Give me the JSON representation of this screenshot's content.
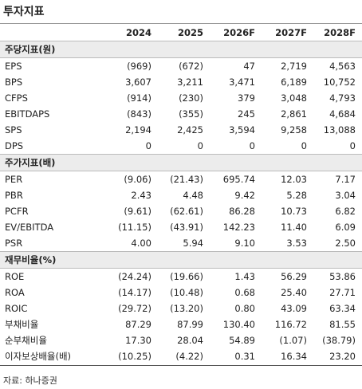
{
  "header": {
    "title": "투자지표"
  },
  "table": {
    "columns": [
      "2024",
      "2025",
      "2026F",
      "2027F",
      "2028F"
    ],
    "sections": [
      {
        "title": "주당지표(원)",
        "rows": [
          {
            "label": "EPS",
            "values": [
              "(969)",
              "(672)",
              "47",
              "2,719",
              "4,563"
            ]
          },
          {
            "label": "BPS",
            "values": [
              "3,607",
              "3,211",
              "3,471",
              "6,189",
              "10,752"
            ]
          },
          {
            "label": "CFPS",
            "values": [
              "(914)",
              "(230)",
              "379",
              "3,048",
              "4,793"
            ]
          },
          {
            "label": "EBITDAPS",
            "values": [
              "(843)",
              "(355)",
              "245",
              "2,861",
              "4,684"
            ]
          },
          {
            "label": "SPS",
            "values": [
              "2,194",
              "2,425",
              "3,594",
              "9,258",
              "13,088"
            ]
          },
          {
            "label": "DPS",
            "values": [
              "0",
              "0",
              "0",
              "0",
              "0"
            ]
          }
        ]
      },
      {
        "title": "주가지표(배)",
        "rows": [
          {
            "label": "PER",
            "values": [
              "(9.06)",
              "(21.43)",
              "695.74",
              "12.03",
              "7.17"
            ]
          },
          {
            "label": "PBR",
            "values": [
              "2.43",
              "4.48",
              "9.42",
              "5.28",
              "3.04"
            ]
          },
          {
            "label": "PCFR",
            "values": [
              "(9.61)",
              "(62.61)",
              "86.28",
              "10.73",
              "6.82"
            ]
          },
          {
            "label": "EV/EBITDA",
            "values": [
              "(11.15)",
              "(43.91)",
              "142.23",
              "11.40",
              "6.09"
            ]
          },
          {
            "label": "PSR",
            "values": [
              "4.00",
              "5.94",
              "9.10",
              "3.53",
              "2.50"
            ]
          }
        ]
      },
      {
        "title": "재무비율(%)",
        "rows": [
          {
            "label": "ROE",
            "values": [
              "(24.24)",
              "(19.66)",
              "1.43",
              "56.29",
              "53.86"
            ]
          },
          {
            "label": "ROA",
            "values": [
              "(14.17)",
              "(10.48)",
              "0.68",
              "25.40",
              "27.71"
            ]
          },
          {
            "label": "ROIC",
            "values": [
              "(29.72)",
              "(13.20)",
              "0.80",
              "43.09",
              "63.34"
            ]
          },
          {
            "label": "부채비율",
            "values": [
              "87.29",
              "87.99",
              "130.40",
              "116.72",
              "81.55"
            ]
          },
          {
            "label": "순부채비율",
            "values": [
              "17.30",
              "28.04",
              "54.89",
              "(1.07)",
              "(38.79)"
            ]
          },
          {
            "label": "이자보상배율(배)",
            "values": [
              "(10.25)",
              "(4.22)",
              "0.31",
              "16.34",
              "23.20"
            ]
          }
        ]
      }
    ]
  },
  "footer": {
    "source": "자료: 하나증권"
  }
}
